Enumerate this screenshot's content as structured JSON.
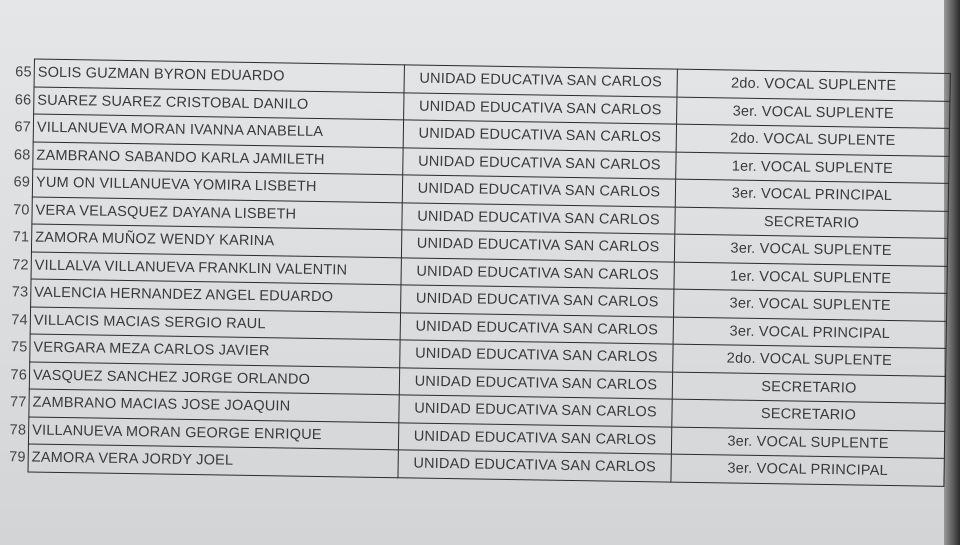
{
  "rows": [
    {
      "num": "65",
      "name": "SOLIS GUZMAN BYRON EDUARDO",
      "school": "UNIDAD EDUCATIVA SAN CARLOS",
      "role": "2do. VOCAL SUPLENTE"
    },
    {
      "num": "66",
      "name": "SUAREZ SUAREZ CRISTOBAL DANILO",
      "school": "UNIDAD EDUCATIVA SAN CARLOS",
      "role": "3er. VOCAL SUPLENTE"
    },
    {
      "num": "67",
      "name": "VILLANUEVA MORAN IVANNA ANABELLA",
      "school": "UNIDAD EDUCATIVA SAN CARLOS",
      "role": "2do. VOCAL SUPLENTE"
    },
    {
      "num": "68",
      "name": "ZAMBRANO SABANDO KARLA JAMILETH",
      "school": "UNIDAD EDUCATIVA SAN CARLOS",
      "role": "1er. VOCAL SUPLENTE"
    },
    {
      "num": "69",
      "name": "YUM ON VILLANUEVA YOMIRA LISBETH",
      "school": "UNIDAD EDUCATIVA SAN CARLOS",
      "role": "3er. VOCAL PRINCIPAL"
    },
    {
      "num": "70",
      "name": "VERA VELASQUEZ DAYANA LISBETH",
      "school": "UNIDAD EDUCATIVA SAN CARLOS",
      "role": "SECRETARIO"
    },
    {
      "num": "71",
      "name": "ZAMORA MUÑOZ WENDY KARINA",
      "school": "UNIDAD EDUCATIVA SAN CARLOS",
      "role": "3er. VOCAL SUPLENTE"
    },
    {
      "num": "72",
      "name": "VILLALVA VILLANUEVA FRANKLIN VALENTIN",
      "school": "UNIDAD EDUCATIVA SAN CARLOS",
      "role": "1er. VOCAL SUPLENTE"
    },
    {
      "num": "73",
      "name": "VALENCIA HERNANDEZ ANGEL EDUARDO",
      "school": "UNIDAD EDUCATIVA SAN CARLOS",
      "role": "3er. VOCAL SUPLENTE"
    },
    {
      "num": "74",
      "name": "VILLACIS MACIAS SERGIO RAUL",
      "school": "UNIDAD EDUCATIVA SAN CARLOS",
      "role": "3er. VOCAL PRINCIPAL"
    },
    {
      "num": "75",
      "name": "VERGARA MEZA CARLOS JAVIER",
      "school": "UNIDAD EDUCATIVA SAN CARLOS",
      "role": "2do. VOCAL SUPLENTE"
    },
    {
      "num": "76",
      "name": "VASQUEZ SANCHEZ JORGE ORLANDO",
      "school": "UNIDAD EDUCATIVA SAN CARLOS",
      "role": "SECRETARIO"
    },
    {
      "num": "77",
      "name": "ZAMBRANO MACIAS JOSE JOAQUIN",
      "school": "UNIDAD EDUCATIVA SAN CARLOS",
      "role": "SECRETARIO"
    },
    {
      "num": "78",
      "name": "VILLANUEVA MORAN GEORGE ENRIQUE",
      "school": "UNIDAD EDUCATIVA SAN CARLOS",
      "role": "3er. VOCAL SUPLENTE"
    },
    {
      "num": "79",
      "name": "ZAMORA VERA JORDY JOEL",
      "school": "UNIDAD EDUCATIVA SAN CARLOS",
      "role": "3er. VOCAL PRINCIPAL"
    }
  ]
}
